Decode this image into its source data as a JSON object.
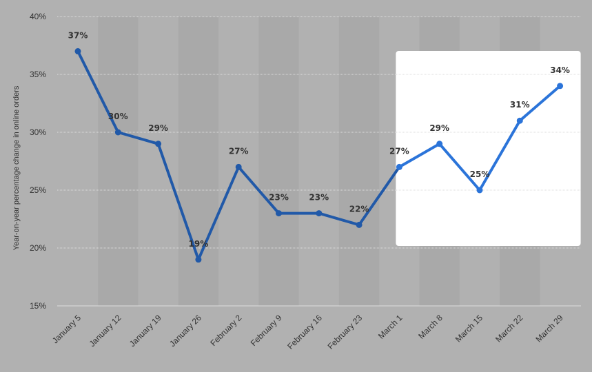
{
  "chart_data": {
    "type": "line",
    "categories": [
      "January 5",
      "January 12",
      "January 19",
      "January 26",
      "February 2",
      "February 9",
      "February 16",
      "February 23",
      "March 1",
      "March 8",
      "March 15",
      "March 22",
      "March 29"
    ],
    "values": [
      37,
      30,
      29,
      19,
      27,
      23,
      23,
      22,
      27,
      29,
      25,
      31,
      34
    ],
    "data_labels": [
      "37%",
      "30%",
      "29%",
      "19%",
      "27%",
      "23%",
      "23%",
      "22%",
      "27%",
      "29%",
      "25%",
      "31%",
      "34%"
    ],
    "title": "",
    "xlabel": "",
    "ylabel": "Year-on-year percentage change in online orders",
    "ylim": [
      15,
      40
    ],
    "yticks": [
      15,
      20,
      25,
      30,
      35,
      40
    ],
    "ytick_labels": [
      "15%",
      "20%",
      "25%",
      "30%",
      "35%",
      "40%"
    ],
    "grid": true,
    "highlight_range": [
      "March 1",
      "March 29"
    ],
    "colors": {
      "background": "#b1b1b1",
      "band_alt": "#a9a9a9",
      "highlight_box": "#ffffff",
      "line": "#2159a8",
      "line_highlight": "#2b74d9",
      "grid": "#dddddd"
    }
  }
}
